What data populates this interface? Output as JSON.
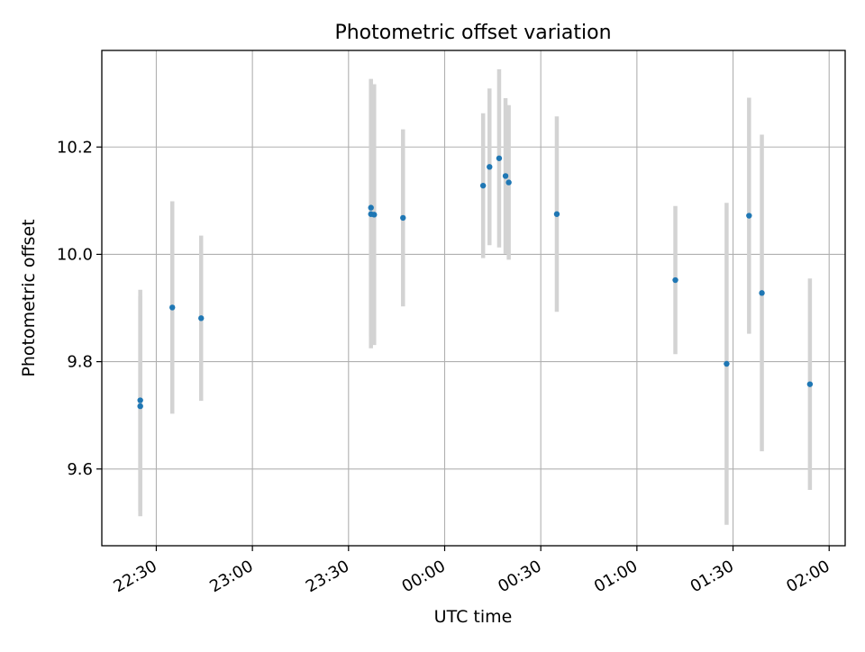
{
  "chart_data": {
    "type": "scatter",
    "title": "Photometric offset variation",
    "xlabel": "UTC time",
    "ylabel": "Photometric offset",
    "x_axis_kind": "time",
    "xlim": [
      "22:13",
      "02:05"
    ],
    "ylim": [
      9.457,
      10.38
    ],
    "xticks": [
      {
        "t": "22:30",
        "label": "22:30"
      },
      {
        "t": "23:00",
        "label": "23:00"
      },
      {
        "t": "23:30",
        "label": "23:30"
      },
      {
        "t": "00:00",
        "label": "00:00"
      },
      {
        "t": "00:30",
        "label": "00:30"
      },
      {
        "t": "01:00",
        "label": "01:00"
      },
      {
        "t": "01:30",
        "label": "01:30"
      },
      {
        "t": "02:00",
        "label": "02:00"
      }
    ],
    "yticks": [
      9.6,
      9.8,
      10.0,
      10.2
    ],
    "ytick_labels": [
      "9.6",
      "9.8",
      "10.0",
      "10.2"
    ],
    "grid": true,
    "marker_color": "#1f77b4",
    "errorbar_color": "#d3d3d3",
    "points": [
      {
        "t": "22:25",
        "y": 9.717,
        "err": 0.205
      },
      {
        "t": "22:25",
        "y": 9.728,
        "err": 0.206
      },
      {
        "t": "22:35",
        "y": 9.901,
        "err": 0.198
      },
      {
        "t": "22:44",
        "y": 9.881,
        "err": 0.154
      },
      {
        "t": "23:37",
        "y": 10.087,
        "err": 0.24
      },
      {
        "t": "23:37",
        "y": 10.075,
        "err": 0.25
      },
      {
        "t": "23:38",
        "y": 10.074,
        "err": 0.243
      },
      {
        "t": "23:47",
        "y": 10.068,
        "err": 0.165
      },
      {
        "t": "00:12",
        "y": 10.128,
        "err": 0.135
      },
      {
        "t": "00:14",
        "y": 10.163,
        "err": 0.146
      },
      {
        "t": "00:17",
        "y": 10.179,
        "err": 0.166
      },
      {
        "t": "00:19",
        "y": 10.146,
        "err": 0.145
      },
      {
        "t": "00:20",
        "y": 10.134,
        "err": 0.144
      },
      {
        "t": "00:35",
        "y": 10.075,
        "err": 0.182
      },
      {
        "t": "01:12",
        "y": 9.952,
        "err": 0.138
      },
      {
        "t": "01:28",
        "y": 9.796,
        "err": 0.3
      },
      {
        "t": "01:35",
        "y": 10.072,
        "err": 0.22
      },
      {
        "t": "01:39",
        "y": 9.928,
        "err": 0.295
      },
      {
        "t": "01:54",
        "y": 9.758,
        "err": 0.197
      }
    ]
  }
}
